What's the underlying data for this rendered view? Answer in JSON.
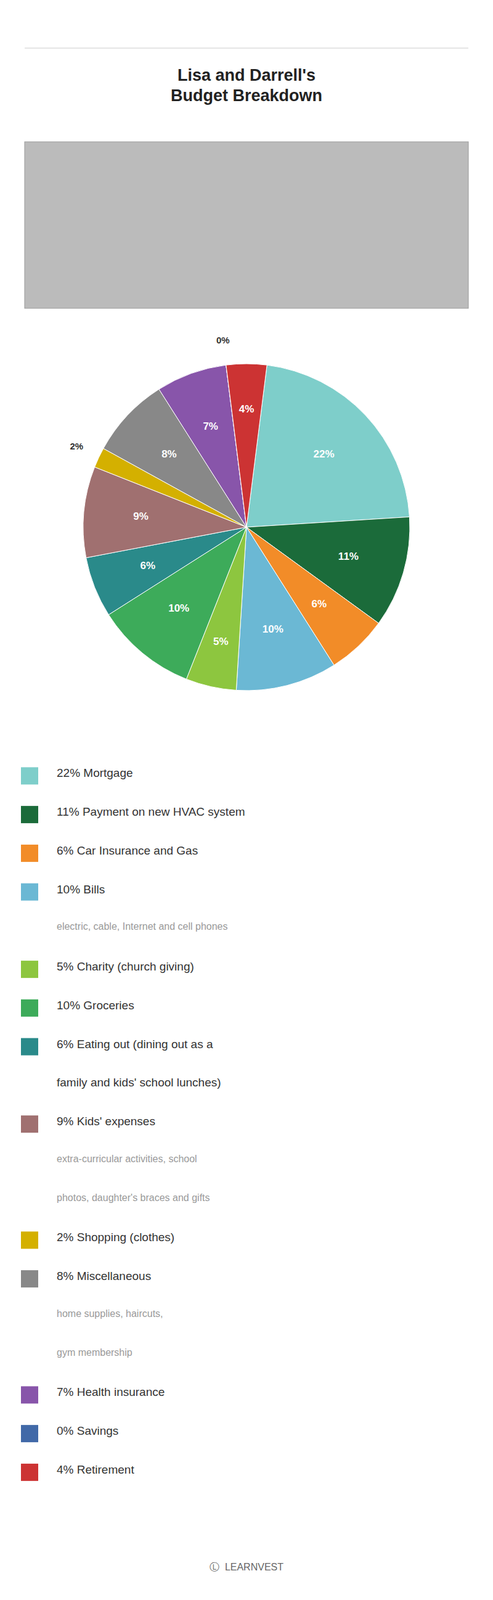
{
  "chart_data": {
    "type": "pie",
    "title": "Lisa and Darrell's\nBudget Breakdown",
    "categories": [
      "22% Mortgage",
      "11% Payment on new HVAC system",
      "6% Car Insurance and Gas",
      "10% Bills",
      "5% Charity (church giving)",
      "10% Groceries",
      "6% Eating out (dining out as a\nfamily and kids' school lunches)",
      "9% Kids' expenses",
      "2% Shopping (clothes)",
      "8% Miscellaneous",
      "7% Health insurance",
      "0% Savings",
      "4% Retirement"
    ],
    "sublabels": [
      null,
      null,
      null,
      "electric, cable, Internet and cell phones",
      null,
      null,
      null,
      "extra-curricular activities, school\nphotos, daughter's braces and gifts",
      null,
      "home supplies, haircuts,\ngym membership",
      null,
      null,
      null
    ],
    "values": [
      22,
      11,
      6,
      10,
      5,
      10,
      6,
      9,
      2,
      8,
      7,
      0,
      4
    ],
    "value_labels": [
      "22%",
      "11%",
      "6%",
      "10%",
      "5%",
      "10%",
      "6%",
      "9%",
      "2%",
      "8%",
      "7%",
      "0%",
      "4%"
    ],
    "colors": [
      "#7ECECA",
      "#1B6B3A",
      "#F28C28",
      "#6BB8D4",
      "#8DC63F",
      "#3DAB5A",
      "#2A8A8A",
      "#A07070",
      "#D4B000",
      "#888888",
      "#8855AA",
      "#4169A8",
      "#CC3333"
    ],
    "data_labels": true,
    "legend": "bottom",
    "annotations": [
      "Ⓛ  LEARNVEST"
    ]
  }
}
